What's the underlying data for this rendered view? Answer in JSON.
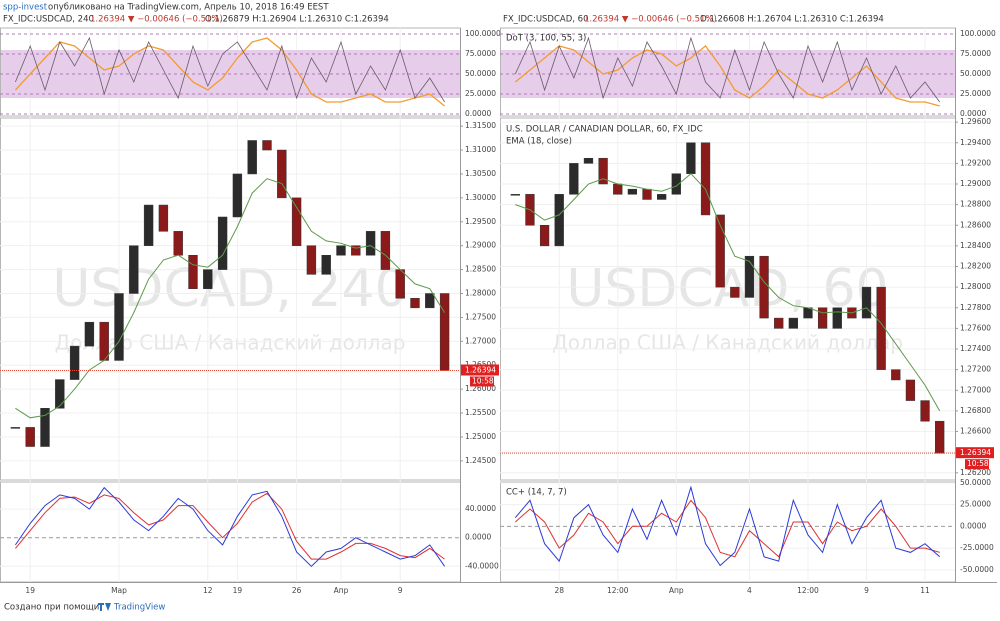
{
  "page": {
    "author": "spp-invest",
    "published": "опубликовано на TradingView.com, Апрель 10, 2018 16:49 EEST",
    "footer": "Создано при помощи",
    "brand": "TradingView"
  },
  "chart_data": [
    {
      "type": "candlestick",
      "symbol": "FX_IDC:USDCAD, 240",
      "quote": "1.26394 ▼ −0.00646 (−0.51%)",
      "ohlc": "O:1.26879 H:1.26904 L:1.26310 C:1.26394",
      "watermark": "USDCAD, 240",
      "watermark_sub": "Доллар США / Канадский доллар",
      "price_tag": "1.26394",
      "time_tag": "10:58",
      "categories": [
        null,
        "19",
        null,
        null,
        null,
        null,
        null,
        "Мар",
        null,
        null,
        null,
        null,
        null,
        "12",
        null,
        "19",
        null,
        null,
        null,
        "26",
        null,
        null,
        "Апр",
        null,
        null,
        null,
        "9",
        null,
        null,
        null
      ],
      "close": [
        1.252,
        1.248,
        1.256,
        1.262,
        1.269,
        1.274,
        1.266,
        1.28,
        1.29,
        1.2985,
        1.293,
        1.288,
        1.281,
        1.285,
        1.296,
        1.305,
        1.312,
        1.31,
        1.3,
        1.29,
        1.284,
        1.288,
        1.29,
        1.288,
        1.293,
        1.285,
        1.279,
        1.277,
        1.28,
        1.2639
      ],
      "ema": [
        1.256,
        1.254,
        1.2545,
        1.2565,
        1.26,
        1.264,
        1.266,
        1.27,
        1.276,
        1.283,
        1.287,
        1.288,
        1.286,
        1.2855,
        1.288,
        1.294,
        1.301,
        1.304,
        1.303,
        1.298,
        1.293,
        1.291,
        1.2905,
        1.2895,
        1.29,
        1.288,
        1.285,
        1.282,
        1.281,
        1.276
      ],
      "ylim": [
        1.241,
        1.3167
      ],
      "yticks": [
        {
          "value": 1.245,
          "label": "1.24500"
        },
        {
          "value": 1.25,
          "label": "1.25000"
        },
        {
          "value": 1.255,
          "label": "1.25500"
        },
        {
          "value": 1.26,
          "label": "1.26000"
        },
        {
          "value": 1.265,
          "label": "1.26500"
        },
        {
          "value": 1.27,
          "label": "1.27000"
        },
        {
          "value": 1.275,
          "label": "1.27500"
        },
        {
          "value": 1.28,
          "label": "1.28000"
        },
        {
          "value": 1.285,
          "label": "1.28500"
        },
        {
          "value": 1.29,
          "label": "1.29000"
        },
        {
          "value": 1.295,
          "label": "1.29500"
        },
        {
          "value": 1.3,
          "label": "1.30000"
        },
        {
          "value": 1.305,
          "label": "1.30500"
        },
        {
          "value": 1.31,
          "label": "1.31000"
        },
        {
          "value": 1.315,
          "label": "1.31500"
        }
      ],
      "osc": {
        "fast": [
          40,
          85,
          30,
          90,
          60,
          95,
          25,
          80,
          40,
          90,
          55,
          20,
          85,
          35,
          75,
          90,
          60,
          30,
          85,
          20,
          70,
          40,
          90,
          25,
          60,
          30,
          80,
          20,
          45,
          15
        ],
        "slow": [
          30,
          50,
          70,
          90,
          85,
          70,
          55,
          60,
          75,
          85,
          80,
          60,
          40,
          30,
          45,
          70,
          90,
          95,
          80,
          55,
          25,
          15,
          15,
          20,
          25,
          15,
          15,
          20,
          25,
          10
        ],
        "band": [
          20,
          80
        ],
        "ylim": [
          -2.5,
          107.5
        ],
        "yticks": [
          {
            "value": 0,
            "label": "0.0000"
          },
          {
            "value": 25,
            "label": "25.0000"
          },
          {
            "value": 50,
            "label": "50.0000"
          },
          {
            "value": 75,
            "label": "75.0000"
          },
          {
            "value": 100,
            "label": "100.0000"
          }
        ]
      },
      "cc": {
        "fast": [
          -10,
          20,
          45,
          60,
          55,
          40,
          70,
          50,
          25,
          10,
          30,
          55,
          40,
          10,
          -10,
          30,
          60,
          65,
          30,
          -20,
          -40,
          -20,
          -15,
          0,
          -10,
          -20,
          -30,
          -25,
          -10,
          -40
        ],
        "slow": [
          -15,
          10,
          35,
          55,
          57,
          48,
          60,
          55,
          35,
          18,
          25,
          45,
          45,
          22,
          0,
          20,
          50,
          62,
          40,
          -5,
          -30,
          -30,
          -20,
          -8,
          -8,
          -15,
          -25,
          -28,
          -15,
          -30
        ],
        "ylim": [
          -62,
          78
        ],
        "yticks": [
          {
            "value": -40,
            "label": "-40.0000"
          },
          {
            "value": 0,
            "label": "0.0000"
          },
          {
            "value": 40,
            "label": "40.0000"
          }
        ]
      }
    },
    {
      "type": "candlestick",
      "symbol": "FX_IDC:USDCAD, 60",
      "quote": "1.26394 ▼ −0.00646 (−0.51%)",
      "ohlc": "O:1.26608 H:1.26704 L:1.26310 C:1.26394",
      "watermark": "USDCAD, 60",
      "watermark_sub": "Доллар США / Канадский доллар",
      "series_title": "U.S. DOLLAR / CANADIAN DOLLAR, 60, FX_IDC",
      "ema_title": "EMA (18, close)",
      "osc_title": "DoT (3, 100, 55, 3)",
      "cc_title": "CC+ (14, 7, 7)",
      "price_tag": "1.26394",
      "time_tag": "10:58",
      "categories": [
        null,
        null,
        null,
        "28",
        null,
        null,
        null,
        "12:00",
        null,
        null,
        null,
        "Апр",
        null,
        null,
        null,
        null,
        "4",
        null,
        null,
        null,
        "12:00",
        null,
        null,
        null,
        "9",
        null,
        null,
        null,
        "11",
        null
      ],
      "close": [
        1.289,
        1.286,
        1.284,
        1.289,
        1.292,
        1.2925,
        1.29,
        1.289,
        1.2895,
        1.2885,
        1.289,
        1.291,
        1.294,
        1.287,
        1.28,
        1.279,
        1.283,
        1.277,
        1.276,
        1.277,
        1.278,
        1.276,
        1.278,
        1.277,
        1.28,
        1.272,
        1.271,
        1.269,
        1.267,
        1.2639
      ],
      "ema": [
        1.288,
        1.2875,
        1.2865,
        1.287,
        1.2885,
        1.29,
        1.2905,
        1.29,
        1.2898,
        1.2895,
        1.2893,
        1.2898,
        1.291,
        1.2895,
        1.286,
        1.283,
        1.2825,
        1.2805,
        1.279,
        1.2782,
        1.278,
        1.2775,
        1.2776,
        1.2775,
        1.278,
        1.2765,
        1.2745,
        1.2725,
        1.2705,
        1.268
      ],
      "ylim": [
        1.2613,
        1.2964
      ],
      "yticks": [
        {
          "value": 1.262,
          "label": "1.26200"
        },
        {
          "value": 1.264,
          "label": "1.26400"
        },
        {
          "value": 1.266,
          "label": "1.26600"
        },
        {
          "value": 1.268,
          "label": "1.26800"
        },
        {
          "value": 1.27,
          "label": "1.27000"
        },
        {
          "value": 1.272,
          "label": "1.27200"
        },
        {
          "value": 1.274,
          "label": "1.27400"
        },
        {
          "value": 1.276,
          "label": "1.27600"
        },
        {
          "value": 1.278,
          "label": "1.27800"
        },
        {
          "value": 1.28,
          "label": "1.28000"
        },
        {
          "value": 1.282,
          "label": "1.28200"
        },
        {
          "value": 1.284,
          "label": "1.28400"
        },
        {
          "value": 1.286,
          "label": "1.28600"
        },
        {
          "value": 1.288,
          "label": "1.28800"
        },
        {
          "value": 1.29,
          "label": "1.29000"
        },
        {
          "value": 1.292,
          "label": "1.29200"
        },
        {
          "value": 1.294,
          "label": "1.29400"
        },
        {
          "value": 1.296,
          "label": "1.29600"
        }
      ],
      "osc": {
        "fast": [
          50,
          90,
          30,
          85,
          45,
          95,
          20,
          70,
          35,
          90,
          60,
          25,
          95,
          40,
          20,
          80,
          30,
          90,
          50,
          20,
          85,
          40,
          90,
          30,
          70,
          25,
          60,
          20,
          40,
          15
        ],
        "slow": [
          40,
          55,
          70,
          85,
          80,
          65,
          50,
          55,
          70,
          80,
          75,
          60,
          70,
          85,
          60,
          30,
          20,
          35,
          55,
          40,
          25,
          20,
          30,
          45,
          60,
          40,
          20,
          15,
          15,
          10
        ],
        "band": [
          20,
          80
        ],
        "ylim": [
          -2.5,
          107.5
        ],
        "yticks": [
          {
            "value": 0,
            "label": "0.0000"
          },
          {
            "value": 25,
            "label": "25.0000"
          },
          {
            "value": 50,
            "label": "50.0000"
          },
          {
            "value": 75,
            "label": "75.0000"
          },
          {
            "value": 100,
            "label": "100.0000"
          }
        ]
      },
      "cc": {
        "fast": [
          10,
          30,
          -20,
          -40,
          10,
          25,
          -10,
          -30,
          20,
          -15,
          30,
          -10,
          45,
          -20,
          -45,
          -30,
          20,
          -35,
          -40,
          30,
          -10,
          -30,
          25,
          -20,
          10,
          30,
          -25,
          -30,
          -20,
          -35
        ],
        "slow": [
          5,
          20,
          5,
          -25,
          -10,
          15,
          5,
          -20,
          0,
          0,
          15,
          5,
          30,
          10,
          -30,
          -35,
          -5,
          -20,
          -35,
          5,
          5,
          -20,
          5,
          -5,
          0,
          20,
          0,
          -25,
          -25,
          -30
        ],
        "ylim": [
          -64,
          51
        ],
        "yticks": [
          {
            "value": -50,
            "label": "-50.0000"
          },
          {
            "value": -25,
            "label": "-25.0000"
          },
          {
            "value": 0,
            "label": "0.0000"
          },
          {
            "value": 25,
            "label": "25.0000"
          },
          {
            "value": 50,
            "label": "50.0000"
          }
        ]
      }
    }
  ]
}
